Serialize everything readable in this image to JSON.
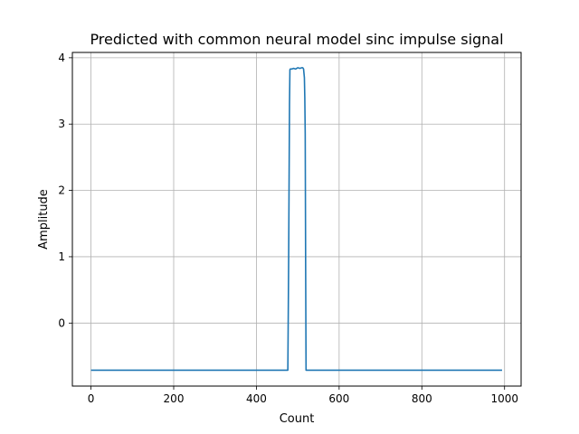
{
  "chart_data": {
    "type": "line",
    "title": "Predicted with common neural model sinc impulse signal",
    "xlabel": "Count",
    "ylabel": "Amplitude",
    "xlim": [
      -45,
      1040
    ],
    "ylim": [
      -0.95,
      4.08
    ],
    "xticks": [
      0,
      200,
      400,
      600,
      800,
      1000
    ],
    "yticks": [
      0,
      1,
      2,
      3,
      4
    ],
    "xtick_labels": [
      "0",
      "200",
      "400",
      "600",
      "800",
      "1000"
    ],
    "ytick_labels": [
      "0",
      "1",
      "2",
      "3",
      "4"
    ],
    "grid": true,
    "line_color": "#1f77b4",
    "series": [
      {
        "x": [
          0,
          476,
          478,
          480,
          481,
          482,
          485,
          490,
          495,
          500,
          505,
          510,
          512,
          514,
          516,
          517,
          518,
          519,
          520,
          522,
          994
        ],
        "y": [
          -0.71,
          -0.71,
          1.0,
          3.3,
          3.82,
          3.83,
          3.83,
          3.84,
          3.83,
          3.85,
          3.84,
          3.85,
          3.85,
          3.83,
          3.7,
          3.4,
          2.85,
          0.9,
          -0.71,
          -0.71,
          -0.71
        ]
      }
    ]
  }
}
